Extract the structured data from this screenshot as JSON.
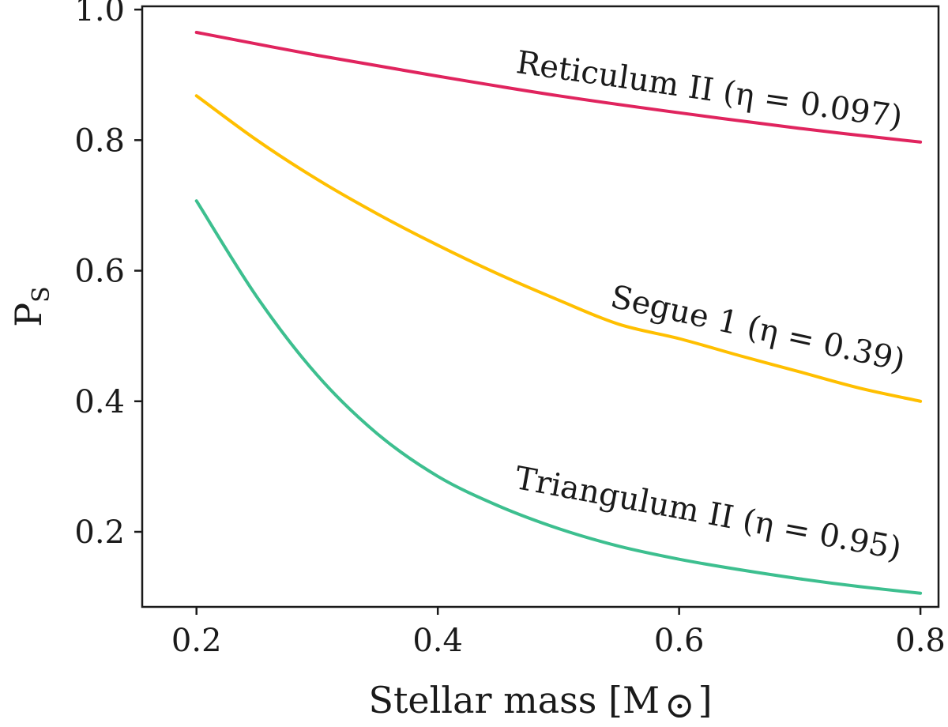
{
  "chart_data": {
    "type": "line",
    "title": "",
    "xlabel": "Stellar mass [M",
    "xlabel_symbol": "⊙",
    "xlabel_close": "]",
    "ylabel": "P",
    "ylabel_sub": "S",
    "xlim": [
      0.155,
      0.815
    ],
    "ylim": [
      0.085,
      1.005
    ],
    "xticks": [
      0.2,
      0.4,
      0.6,
      0.8
    ],
    "xtick_labels": [
      "0.2",
      "0.4",
      "0.6",
      "0.8"
    ],
    "yticks": [
      0.2,
      0.4,
      0.6,
      0.8,
      1.0
    ],
    "ytick_labels": [
      "0.2",
      "0.4",
      "0.6",
      "0.8",
      "1.0"
    ],
    "grid": false,
    "legend": "inline labels",
    "series": [
      {
        "name": "Reticulum II (η = 0.097)",
        "color": "#e0245e",
        "x": [
          0.2,
          0.3,
          0.4,
          0.5,
          0.6,
          0.7,
          0.8
        ],
        "y": [
          0.965,
          0.93,
          0.898,
          0.868,
          0.842,
          0.818,
          0.797
        ]
      },
      {
        "name": "Segue 1 (η = 0.39)",
        "color": "#ffbf00",
        "x": [
          0.2,
          0.25,
          0.3,
          0.35,
          0.4,
          0.45,
          0.5,
          0.55,
          0.6,
          0.65,
          0.7,
          0.75,
          0.8
        ],
        "y": [
          0.868,
          0.8,
          0.74,
          0.687,
          0.639,
          0.595,
          0.555,
          0.518,
          0.496,
          0.47,
          0.445,
          0.42,
          0.4
        ]
      },
      {
        "name": "Triangulum II (η = 0.95)",
        "color": "#3dbf8f",
        "x": [
          0.2,
          0.25,
          0.3,
          0.35,
          0.4,
          0.45,
          0.5,
          0.55,
          0.6,
          0.65,
          0.7,
          0.75,
          0.8
        ],
        "y": [
          0.707,
          0.56,
          0.44,
          0.35,
          0.285,
          0.24,
          0.205,
          0.178,
          0.158,
          0.142,
          0.128,
          0.116,
          0.106
        ]
      }
    ]
  }
}
